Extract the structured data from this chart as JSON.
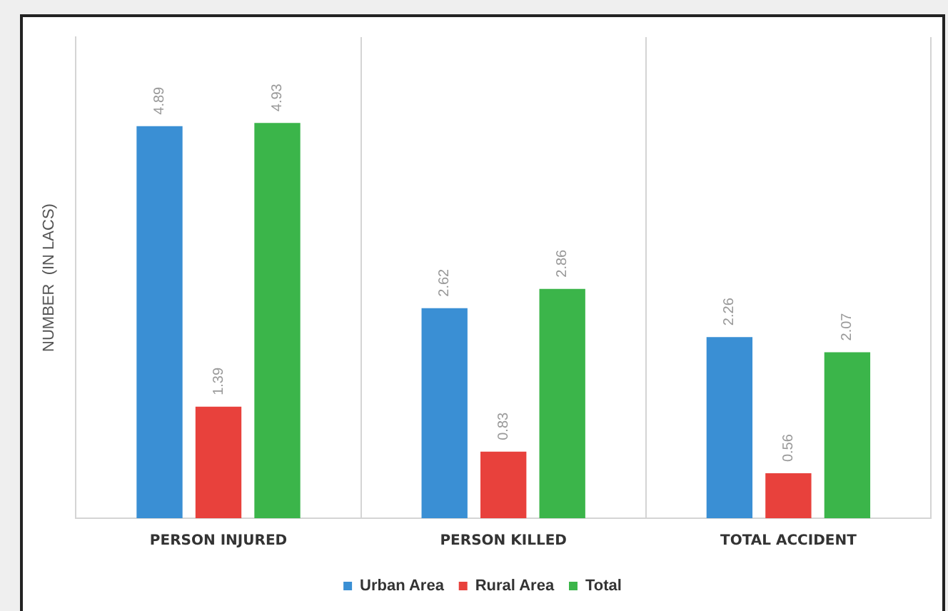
{
  "chart_data": {
    "type": "bar",
    "ylabel": "NUMBER  (IN LACS)",
    "categories": [
      "PERSON INJURED",
      "PERSON KILLED",
      "TOTAL ACCIDENT"
    ],
    "series": [
      {
        "name": "Urban Area",
        "color": "#3a8fd4",
        "values": [
          4.89,
          2.62,
          2.26
        ]
      },
      {
        "name": "Rural Area",
        "color": "#e8413c",
        "values": [
          1.39,
          0.83,
          0.56
        ]
      },
      {
        "name": "Total",
        "color": "#3bb54a",
        "values": [
          4.93,
          2.86,
          2.07
        ]
      }
    ],
    "ylim": [
      0,
      6
    ],
    "data_labels": true,
    "grid": "x",
    "legend": "bottom",
    "tick_labels": "x"
  }
}
